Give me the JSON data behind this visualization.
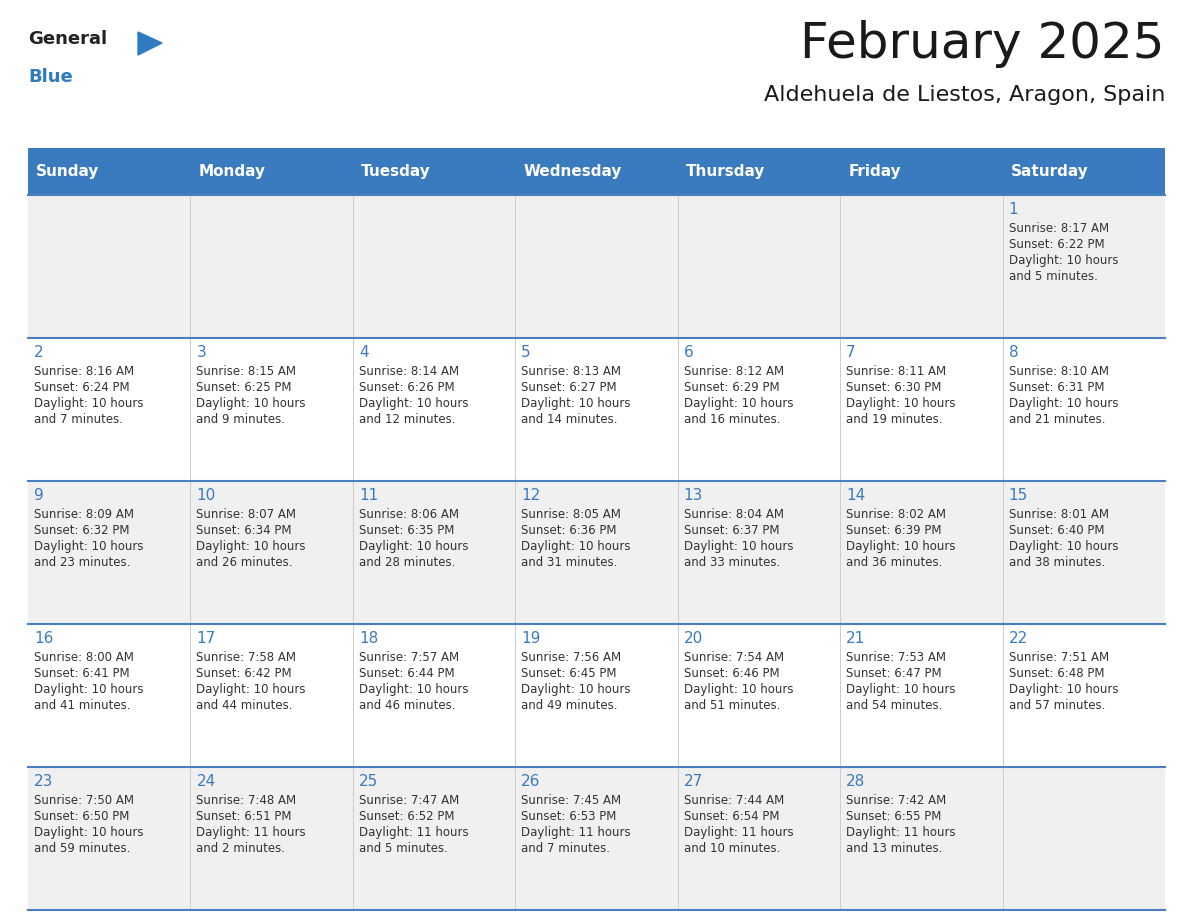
{
  "title": "February 2025",
  "subtitle": "Aldehuela de Liestos, Aragon, Spain",
  "header_color": "#3a7bbf",
  "header_text_color": "#ffffff",
  "background_color": "#ffffff",
  "cell_bg_even": "#f0f0f0",
  "cell_bg_odd": "#ffffff",
  "border_color": "#4a7fbf",
  "day_headers": [
    "Sunday",
    "Monday",
    "Tuesday",
    "Wednesday",
    "Thursday",
    "Friday",
    "Saturday"
  ],
  "title_color": "#1a1a1a",
  "subtitle_color": "#1a1a1a",
  "day_num_color": "#3a7abf",
  "cell_text_color": "#333333",
  "logo_general_color": "#222222",
  "logo_blue_color": "#2e7bbf",
  "weeks": [
    [
      null,
      null,
      null,
      null,
      null,
      null,
      {
        "day": "1",
        "sunrise": "8:17 AM",
        "sunset": "6:22 PM",
        "daylight": "10 hours\nand 5 minutes."
      }
    ],
    [
      {
        "day": "2",
        "sunrise": "8:16 AM",
        "sunset": "6:24 PM",
        "daylight": "10 hours\nand 7 minutes."
      },
      {
        "day": "3",
        "sunrise": "8:15 AM",
        "sunset": "6:25 PM",
        "daylight": "10 hours\nand 9 minutes."
      },
      {
        "day": "4",
        "sunrise": "8:14 AM",
        "sunset": "6:26 PM",
        "daylight": "10 hours\nand 12 minutes."
      },
      {
        "day": "5",
        "sunrise": "8:13 AM",
        "sunset": "6:27 PM",
        "daylight": "10 hours\nand 14 minutes."
      },
      {
        "day": "6",
        "sunrise": "8:12 AM",
        "sunset": "6:29 PM",
        "daylight": "10 hours\nand 16 minutes."
      },
      {
        "day": "7",
        "sunrise": "8:11 AM",
        "sunset": "6:30 PM",
        "daylight": "10 hours\nand 19 minutes."
      },
      {
        "day": "8",
        "sunrise": "8:10 AM",
        "sunset": "6:31 PM",
        "daylight": "10 hours\nand 21 minutes."
      }
    ],
    [
      {
        "day": "9",
        "sunrise": "8:09 AM",
        "sunset": "6:32 PM",
        "daylight": "10 hours\nand 23 minutes."
      },
      {
        "day": "10",
        "sunrise": "8:07 AM",
        "sunset": "6:34 PM",
        "daylight": "10 hours\nand 26 minutes."
      },
      {
        "day": "11",
        "sunrise": "8:06 AM",
        "sunset": "6:35 PM",
        "daylight": "10 hours\nand 28 minutes."
      },
      {
        "day": "12",
        "sunrise": "8:05 AM",
        "sunset": "6:36 PM",
        "daylight": "10 hours\nand 31 minutes."
      },
      {
        "day": "13",
        "sunrise": "8:04 AM",
        "sunset": "6:37 PM",
        "daylight": "10 hours\nand 33 minutes."
      },
      {
        "day": "14",
        "sunrise": "8:02 AM",
        "sunset": "6:39 PM",
        "daylight": "10 hours\nand 36 minutes."
      },
      {
        "day": "15",
        "sunrise": "8:01 AM",
        "sunset": "6:40 PM",
        "daylight": "10 hours\nand 38 minutes."
      }
    ],
    [
      {
        "day": "16",
        "sunrise": "8:00 AM",
        "sunset": "6:41 PM",
        "daylight": "10 hours\nand 41 minutes."
      },
      {
        "day": "17",
        "sunrise": "7:58 AM",
        "sunset": "6:42 PM",
        "daylight": "10 hours\nand 44 minutes."
      },
      {
        "day": "18",
        "sunrise": "7:57 AM",
        "sunset": "6:44 PM",
        "daylight": "10 hours\nand 46 minutes."
      },
      {
        "day": "19",
        "sunrise": "7:56 AM",
        "sunset": "6:45 PM",
        "daylight": "10 hours\nand 49 minutes."
      },
      {
        "day": "20",
        "sunrise": "7:54 AM",
        "sunset": "6:46 PM",
        "daylight": "10 hours\nand 51 minutes."
      },
      {
        "day": "21",
        "sunrise": "7:53 AM",
        "sunset": "6:47 PM",
        "daylight": "10 hours\nand 54 minutes."
      },
      {
        "day": "22",
        "sunrise": "7:51 AM",
        "sunset": "6:48 PM",
        "daylight": "10 hours\nand 57 minutes."
      }
    ],
    [
      {
        "day": "23",
        "sunrise": "7:50 AM",
        "sunset": "6:50 PM",
        "daylight": "10 hours\nand 59 minutes."
      },
      {
        "day": "24",
        "sunrise": "7:48 AM",
        "sunset": "6:51 PM",
        "daylight": "11 hours\nand 2 minutes."
      },
      {
        "day": "25",
        "sunrise": "7:47 AM",
        "sunset": "6:52 PM",
        "daylight": "11 hours\nand 5 minutes."
      },
      {
        "day": "26",
        "sunrise": "7:45 AM",
        "sunset": "6:53 PM",
        "daylight": "11 hours\nand 7 minutes."
      },
      {
        "day": "27",
        "sunrise": "7:44 AM",
        "sunset": "6:54 PM",
        "daylight": "11 hours\nand 10 minutes."
      },
      {
        "day": "28",
        "sunrise": "7:42 AM",
        "sunset": "6:55 PM",
        "daylight": "11 hours\nand 13 minutes."
      },
      null
    ]
  ]
}
